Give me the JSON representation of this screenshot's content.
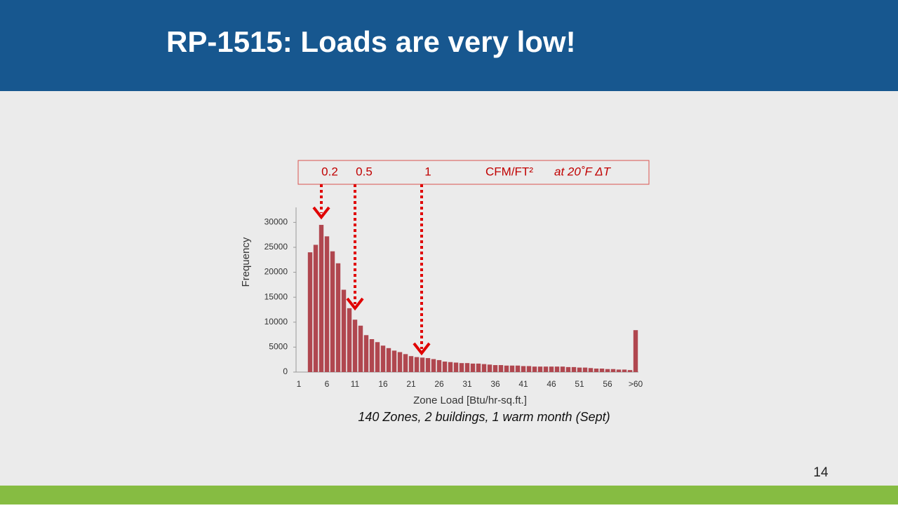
{
  "slide": {
    "title": "RP-1515: Loads are very low!",
    "page_number": "14"
  },
  "chart_data": {
    "type": "bar",
    "annotations": {
      "flow_1": "0.2",
      "flow_2": "0.5",
      "flow_3": "1",
      "unit": "CFM/FT²",
      "condition": "at 20˚F  ΔT"
    },
    "caption": "140 Zones, 2 buildings, 1 warm month (Sept)",
    "x_label": "Zone Load [Btu/hr-sq.ft.]",
    "y_label": "Frequency",
    "color": "#b0474f",
    "categories": [
      "1",
      null,
      null,
      null,
      null,
      "6",
      null,
      null,
      null,
      null,
      "11",
      null,
      null,
      null,
      null,
      "16",
      null,
      null,
      null,
      null,
      "21",
      null,
      null,
      null,
      null,
      "26",
      null,
      null,
      null,
      null,
      "31",
      null,
      null,
      null,
      null,
      "36",
      null,
      null,
      null,
      null,
      "41",
      null,
      null,
      null,
      null,
      "46",
      null,
      null,
      null,
      null,
      "51",
      null,
      null,
      null,
      null,
      "56",
      null,
      null,
      null,
      null,
      ">60"
    ],
    "values": [
      0,
      0,
      24000,
      25500,
      29500,
      27200,
      24200,
      21800,
      16500,
      12800,
      10500,
      9300,
      7400,
      6600,
      6000,
      5300,
      4800,
      4300,
      4000,
      3600,
      3200,
      3000,
      2900,
      2800,
      2600,
      2400,
      2100,
      2000,
      1900,
      1800,
      1800,
      1700,
      1700,
      1600,
      1500,
      1400,
      1400,
      1300,
      1300,
      1300,
      1200,
      1200,
      1100,
      1100,
      1100,
      1100,
      1100,
      1100,
      1000,
      1000,
      900,
      900,
      800,
      700,
      700,
      600,
      600,
      500,
      500,
      400,
      8400
    ],
    "ylim": [
      0,
      33000
    ],
    "yticks": [
      0,
      5000,
      10000,
      15000,
      20000,
      25000,
      30000
    ]
  }
}
